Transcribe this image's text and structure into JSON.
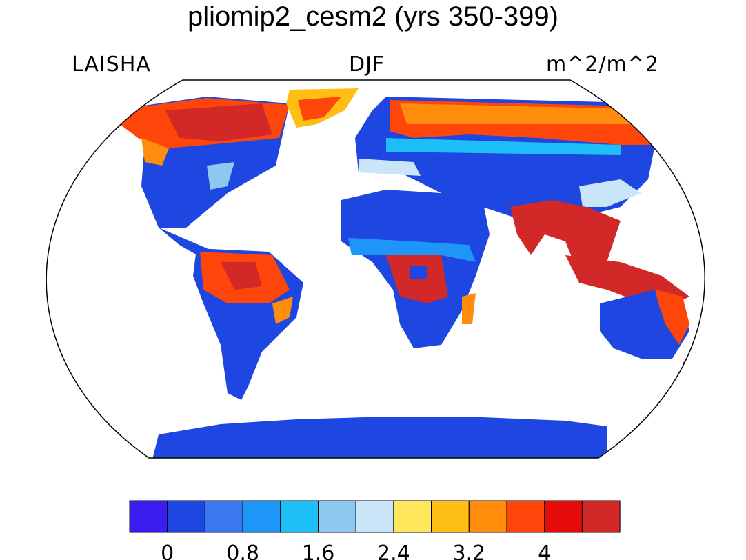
{
  "title": "pliomip2_cesm2 (yrs 350-399)",
  "left_label": "LAISHA",
  "center_label": "DJF",
  "right_label": "m^2/m^2",
  "colorbar": {
    "colors": [
      "#3a1ef0",
      "#1e46e0",
      "#3a78f0",
      "#1e96f8",
      "#1ebef8",
      "#8cc8f0",
      "#c8e6f8",
      "#ffe65a",
      "#ffbe14",
      "#ff8c0a",
      "#ff460a",
      "#e60a0a",
      "#d22828"
    ],
    "tick_labels": [
      "0",
      "0.8",
      "1.6",
      "2.4",
      "3.2",
      "4"
    ]
  }
}
